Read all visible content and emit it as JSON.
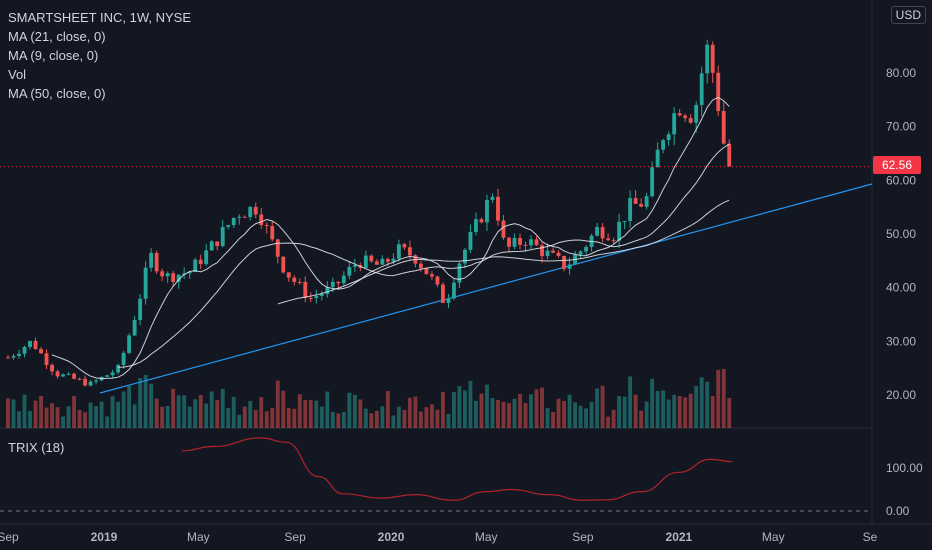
{
  "legend": {
    "symbol": "SMARTSHEET INC, 1W, NYSE",
    "ma21": "MA (21, close, 0)",
    "ma9": "MA (9, close, 0)",
    "vol": "Vol",
    "ma50": "MA (50, close, 0)"
  },
  "currency": "USD",
  "last_price_label": "62.56",
  "colors": {
    "up": "#26a69a",
    "down": "#ef5350",
    "trendline": "#2196f3",
    "trix": "#b2222b",
    "ma": "#e0e3eb",
    "bg": "#131722"
  },
  "chart_data": [
    {
      "type": "candlestick",
      "title": "SMARTSHEET INC, 1W, NYSE",
      "x_ticks": [
        "Sep",
        "2019",
        "May",
        "Sep",
        "2020",
        "May",
        "Sep",
        "2021",
        "May",
        "Se"
      ],
      "y_ticks": [
        "20.00",
        "30.00",
        "40.00",
        "50.00",
        "60.00",
        "70.00",
        "80.00"
      ],
      "ylim": [
        14,
        91
      ],
      "last_price": 62.56,
      "close_path": [
        [
          "2018-09-01",
          27
        ],
        [
          "2018-10-01",
          30
        ],
        [
          "2018-11-01",
          24
        ],
        [
          "2018-12-15",
          22
        ],
        [
          "2019-01-20",
          25
        ],
        [
          "2019-02-10",
          35
        ],
        [
          "2019-03-01",
          46
        ],
        [
          "2019-03-20",
          42
        ],
        [
          "2019-04-20",
          43
        ],
        [
          "2019-05-20",
          48
        ],
        [
          "2019-06-20",
          54
        ],
        [
          "2019-07-15",
          55
        ],
        [
          "2019-08-01",
          49
        ],
        [
          "2019-08-20",
          43
        ],
        [
          "2019-09-20",
          38
        ],
        [
          "2019-10-20",
          40
        ],
        [
          "2019-11-20",
          45
        ],
        [
          "2019-12-20",
          44
        ],
        [
          "2020-01-10",
          47
        ],
        [
          "2020-01-30",
          46
        ],
        [
          "2020-02-20",
          42
        ],
        [
          "2020-03-10",
          37
        ],
        [
          "2020-03-25",
          44
        ],
        [
          "2020-04-20",
          52
        ],
        [
          "2020-05-10",
          58
        ],
        [
          "2020-05-25",
          47
        ],
        [
          "2020-06-20",
          49
        ],
        [
          "2020-07-20",
          46
        ],
        [
          "2020-08-10",
          44
        ],
        [
          "2020-08-30",
          47
        ],
        [
          "2020-09-20",
          51
        ],
        [
          "2020-10-10",
          50
        ],
        [
          "2020-10-30",
          55
        ],
        [
          "2020-11-20",
          56
        ],
        [
          "2020-12-10",
          68
        ],
        [
          "2021-01-01",
          74
        ],
        [
          "2021-01-20",
          72
        ],
        [
          "2021-02-05",
          85
        ],
        [
          "2021-02-15",
          79
        ],
        [
          "2021-02-28",
          66
        ],
        [
          "2021-03-10",
          62.56
        ]
      ],
      "volume_ticks": "unlabeled"
    },
    {
      "type": "line",
      "title": "TRIX (18)",
      "y_ticks": [
        "0.00",
        "100.00"
      ],
      "series": [
        {
          "name": "TRIX (18)",
          "points": [
            [
              "2019-04-10",
              140
            ],
            [
              "2019-05-20",
              150
            ],
            [
              "2019-07-20",
              170
            ],
            [
              "2019-08-20",
              160
            ],
            [
              "2019-10-01",
              80
            ],
            [
              "2019-11-01",
              40
            ],
            [
              "2019-12-20",
              30
            ],
            [
              "2020-02-01",
              38
            ],
            [
              "2020-03-20",
              25
            ],
            [
              "2020-05-01",
              45
            ],
            [
              "2020-06-01",
              50
            ],
            [
              "2020-07-20",
              38
            ],
            [
              "2020-09-01",
              25
            ],
            [
              "2020-10-01",
              26
            ],
            [
              "2020-11-15",
              45
            ],
            [
              "2021-01-01",
              90
            ],
            [
              "2021-02-10",
              120
            ],
            [
              "2021-03-10",
              115
            ]
          ]
        }
      ]
    }
  ]
}
